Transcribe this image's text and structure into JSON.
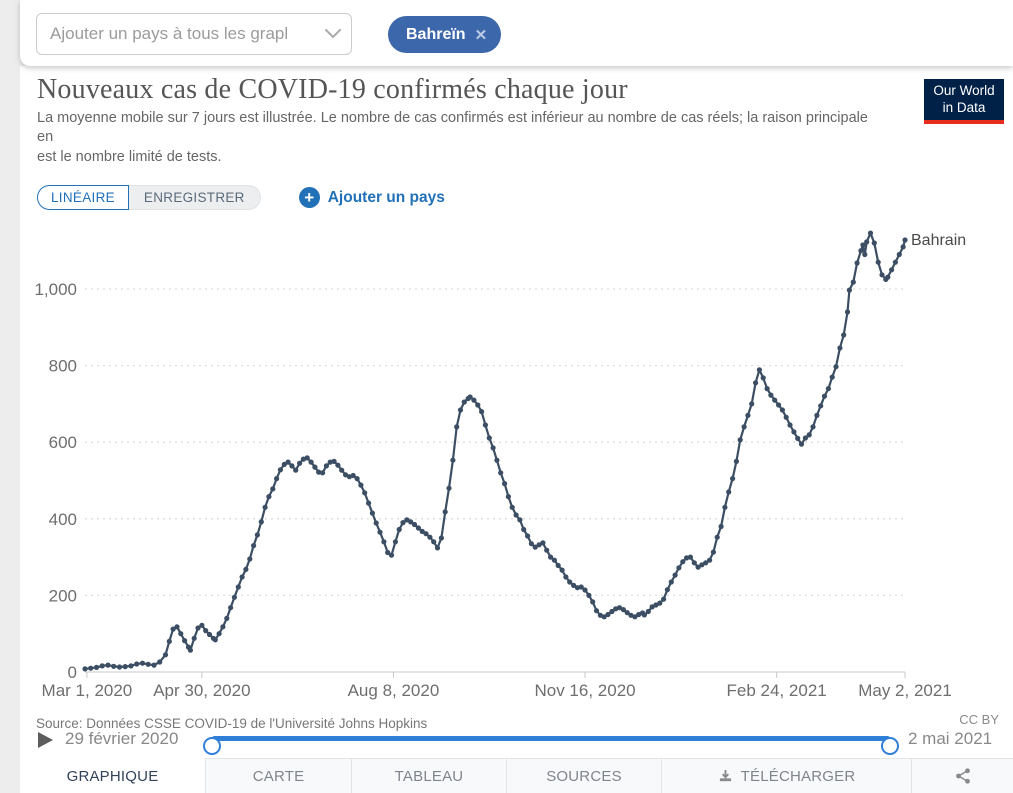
{
  "page": {
    "background": "#ededee",
    "card_background": "#ffffff",
    "accent_blue": "#2271b8"
  },
  "toolbar": {
    "country_select": {
      "placeholder": "Ajouter un pays à tous les grapl",
      "chevron_icon": "chevron-down-icon"
    },
    "selected_tag": {
      "label": "Bahreïn",
      "color": "#3d67ab",
      "remove_icon": "close-icon",
      "remove_glyph": "✕"
    }
  },
  "header": {
    "title": "Nouveaux cas de COVID-19 confirmés chaque jour",
    "subtitle_line1": "La moyenne mobile sur 7 jours est illustrée. Le nombre de cas confirmés est inférieur au nombre de cas réels; la raison principale",
    "subtitle_line2": "en",
    "subtitle_line3": "est le nombre limité de tests.",
    "logo": {
      "line1": "Our World",
      "line2": "in Data",
      "bg": "#002147",
      "accent": "#e62e1f"
    }
  },
  "controls": {
    "linear_label": "LINÉAIRE",
    "save_label": "ENREGISTRER",
    "add_country_label": "Ajouter un pays",
    "add_icon": "plus-circle-icon"
  },
  "chart_data": {
    "type": "line",
    "title": "Nouveaux cas de COVID-19 confirmés chaque jour",
    "grid": "dashed horizontal gridlines",
    "legend_position": "end-of-line label",
    "x_axis": {
      "unit": "days since 2020-02-29",
      "start_date": "2020-02-29",
      "end_date": "2021-05-02",
      "day_max": 428,
      "tick_days": [
        1,
        61,
        161,
        261,
        361,
        428
      ],
      "tick_labels": [
        "Mar 1, 2020",
        "Apr 30, 2020",
        "Aug 8, 2020",
        "Nov 16, 2020",
        "Feb 24, 2021",
        "May 2, 2021"
      ]
    },
    "y_axis": {
      "min": 0,
      "max": 1200,
      "ticks": [
        0,
        200,
        400,
        600,
        800,
        1000
      ],
      "tick_labels": [
        "0",
        "200",
        "400",
        "600",
        "800",
        "1,000"
      ]
    },
    "series": [
      {
        "name": "Bahrain",
        "color": "#3c4e63",
        "points": [
          [
            0,
            8
          ],
          [
            3,
            10
          ],
          [
            6,
            12
          ],
          [
            9,
            16
          ],
          [
            12,
            18
          ],
          [
            15,
            15
          ],
          [
            18,
            13
          ],
          [
            21,
            14
          ],
          [
            24,
            16
          ],
          [
            27,
            21
          ],
          [
            30,
            23
          ],
          [
            33,
            20
          ],
          [
            36,
            18
          ],
          [
            39,
            26
          ],
          [
            42,
            45
          ],
          [
            44,
            80
          ],
          [
            46,
            112
          ],
          [
            48,
            118
          ],
          [
            50,
            100
          ],
          [
            52,
            82
          ],
          [
            54,
            65
          ],
          [
            55,
            57
          ],
          [
            57,
            88
          ],
          [
            59,
            115
          ],
          [
            61,
            122
          ],
          [
            63,
            108
          ],
          [
            65,
            98
          ],
          [
            67,
            88
          ],
          [
            68,
            84
          ],
          [
            70,
            100
          ],
          [
            72,
            118
          ],
          [
            74,
            140
          ],
          [
            76,
            168
          ],
          [
            78,
            195
          ],
          [
            80,
            222
          ],
          [
            82,
            248
          ],
          [
            84,
            268
          ],
          [
            86,
            295
          ],
          [
            88,
            330
          ],
          [
            90,
            358
          ],
          [
            92,
            392
          ],
          [
            94,
            430
          ],
          [
            96,
            458
          ],
          [
            98,
            478
          ],
          [
            100,
            505
          ],
          [
            102,
            528
          ],
          [
            104,
            542
          ],
          [
            106,
            548
          ],
          [
            108,
            538
          ],
          [
            110,
            527
          ],
          [
            112,
            545
          ],
          [
            114,
            556
          ],
          [
            116,
            559
          ],
          [
            118,
            548
          ],
          [
            120,
            535
          ],
          [
            122,
            522
          ],
          [
            124,
            520
          ],
          [
            126,
            538
          ],
          [
            128,
            548
          ],
          [
            130,
            550
          ],
          [
            132,
            540
          ],
          [
            134,
            527
          ],
          [
            136,
            515
          ],
          [
            138,
            510
          ],
          [
            140,
            513
          ],
          [
            142,
            505
          ],
          [
            144,
            488
          ],
          [
            146,
            468
          ],
          [
            148,
            441
          ],
          [
            150,
            415
          ],
          [
            152,
            389
          ],
          [
            154,
            365
          ],
          [
            156,
            340
          ],
          [
            158,
            312
          ],
          [
            160,
            305
          ],
          [
            162,
            340
          ],
          [
            164,
            372
          ],
          [
            166,
            390
          ],
          [
            168,
            397
          ],
          [
            170,
            392
          ],
          [
            172,
            385
          ],
          [
            174,
            376
          ],
          [
            176,
            367
          ],
          [
            178,
            361
          ],
          [
            180,
            352
          ],
          [
            182,
            340
          ],
          [
            184,
            324
          ],
          [
            186,
            350
          ],
          [
            188,
            418
          ],
          [
            190,
            480
          ],
          [
            192,
            553
          ],
          [
            194,
            640
          ],
          [
            196,
            684
          ],
          [
            198,
            705
          ],
          [
            200,
            714
          ],
          [
            201,
            718
          ],
          [
            203,
            710
          ],
          [
            205,
            697
          ],
          [
            207,
            680
          ],
          [
            209,
            645
          ],
          [
            211,
            611
          ],
          [
            213,
            585
          ],
          [
            215,
            553
          ],
          [
            217,
            520
          ],
          [
            219,
            492
          ],
          [
            221,
            458
          ],
          [
            223,
            430
          ],
          [
            225,
            410
          ],
          [
            227,
            397
          ],
          [
            229,
            372
          ],
          [
            231,
            355
          ],
          [
            233,
            335
          ],
          [
            235,
            326
          ],
          [
            237,
            332
          ],
          [
            239,
            337
          ],
          [
            241,
            318
          ],
          [
            243,
            300
          ],
          [
            245,
            292
          ],
          [
            247,
            278
          ],
          [
            249,
            266
          ],
          [
            251,
            248
          ],
          [
            253,
            235
          ],
          [
            255,
            226
          ],
          [
            257,
            220
          ],
          [
            259,
            222
          ],
          [
            261,
            214
          ],
          [
            263,
            200
          ],
          [
            265,
            183
          ],
          [
            267,
            160
          ],
          [
            269,
            148
          ],
          [
            271,
            144
          ],
          [
            273,
            150
          ],
          [
            275,
            158
          ],
          [
            277,
            165
          ],
          [
            279,
            168
          ],
          [
            281,
            163
          ],
          [
            283,
            155
          ],
          [
            285,
            148
          ],
          [
            287,
            144
          ],
          [
            289,
            150
          ],
          [
            291,
            154
          ],
          [
            292,
            149
          ],
          [
            294,
            158
          ],
          [
            296,
            170
          ],
          [
            298,
            175
          ],
          [
            300,
            180
          ],
          [
            302,
            190
          ],
          [
            304,
            215
          ],
          [
            306,
            235
          ],
          [
            308,
            253
          ],
          [
            310,
            272
          ],
          [
            312,
            288
          ],
          [
            314,
            298
          ],
          [
            316,
            300
          ],
          [
            318,
            285
          ],
          [
            320,
            274
          ],
          [
            322,
            280
          ],
          [
            324,
            285
          ],
          [
            326,
            292
          ],
          [
            328,
            313
          ],
          [
            330,
            352
          ],
          [
            332,
            380
          ],
          [
            334,
            430
          ],
          [
            336,
            470
          ],
          [
            338,
            505
          ],
          [
            340,
            550
          ],
          [
            342,
            606
          ],
          [
            344,
            640
          ],
          [
            346,
            670
          ],
          [
            348,
            700
          ],
          [
            350,
            755
          ],
          [
            352,
            789
          ],
          [
            354,
            768
          ],
          [
            356,
            740
          ],
          [
            358,
            723
          ],
          [
            360,
            710
          ],
          [
            362,
            697
          ],
          [
            364,
            684
          ],
          [
            366,
            665
          ],
          [
            368,
            645
          ],
          [
            370,
            627
          ],
          [
            372,
            610
          ],
          [
            374,
            595
          ],
          [
            376,
            611
          ],
          [
            378,
            619
          ],
          [
            380,
            640
          ],
          [
            382,
            670
          ],
          [
            384,
            695
          ],
          [
            386,
            720
          ],
          [
            388,
            740
          ],
          [
            390,
            770
          ],
          [
            392,
            797
          ],
          [
            394,
            846
          ],
          [
            396,
            880
          ],
          [
            398,
            940
          ],
          [
            399,
            997
          ],
          [
            401,
            1018
          ],
          [
            403,
            1068
          ],
          [
            405,
            1100
          ],
          [
            406,
            1115
          ],
          [
            407,
            1090
          ],
          [
            408,
            1123
          ],
          [
            410,
            1146
          ],
          [
            412,
            1120
          ],
          [
            414,
            1070
          ],
          [
            416,
            1037
          ],
          [
            418,
            1025
          ],
          [
            419,
            1031
          ],
          [
            421,
            1050
          ],
          [
            423,
            1070
          ],
          [
            425,
            1090
          ],
          [
            427,
            1110
          ],
          [
            428,
            1128
          ]
        ]
      }
    ]
  },
  "footer": {
    "source": "Source: Données CSSE COVID-19 de l'Université Johns Hopkins",
    "license": "CC BY",
    "timeline": {
      "play_icon": "play-icon",
      "start_label": "29 février 2020",
      "end_label": "2 mai 2021",
      "track_color": "#2f7ed8",
      "handle_border": "#2f7ed8"
    }
  },
  "tabs": [
    {
      "label": "GRAPHIQUE",
      "active": true
    },
    {
      "label": "CARTE",
      "active": false
    },
    {
      "label": "TABLEAU",
      "active": false
    },
    {
      "label": "SOURCES",
      "active": false
    },
    {
      "label": "TÉLÉCHARGER",
      "active": false,
      "icon": "download-icon"
    },
    {
      "label": "",
      "active": false,
      "icon": "share-icon"
    }
  ]
}
